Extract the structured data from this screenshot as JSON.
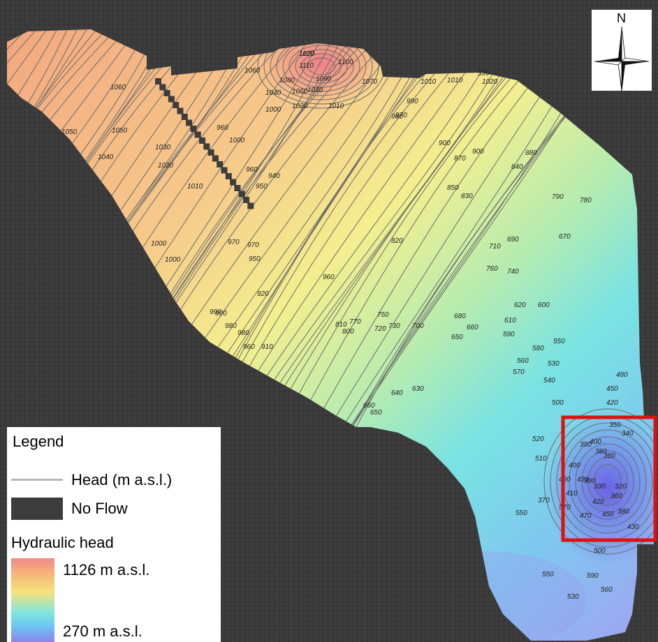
{
  "legend": {
    "title": "Legend",
    "head_label": "Head (m a.s.l.)",
    "noflow_label": "No Flow",
    "hydraulic_title": "Hydraulic head",
    "max_label": "1126 m a.s.l.",
    "min_label": "270 m a.s.l."
  },
  "north_arrow": {
    "label": "N"
  },
  "colors": {
    "no_flow": "#3a3a3a",
    "grid_line": "#2a2a2a",
    "contour": "#6b6b6b",
    "highlight_box": "#e01010",
    "ramp_high": "#f08a8a",
    "ramp_low": "#8a84ef"
  },
  "contour_labels": [
    "1120",
    "1110",
    "1100",
    "1090",
    "1070",
    "1060",
    "1080",
    "1050",
    "1040",
    "1030",
    "1020",
    "1010",
    "1000",
    "1060",
    "1050",
    "1040",
    "1030",
    "1020",
    "1010",
    "1050",
    "1000",
    "960",
    "1000",
    "1010",
    "1010",
    "1020",
    "990",
    "960",
    "960",
    "950",
    "940",
    "970",
    "950",
    "920",
    "960",
    "970",
    "990",
    "980",
    "960",
    "910",
    "980",
    "990",
    "1000",
    "970",
    "900",
    "900",
    "870",
    "880",
    "840",
    "850",
    "830",
    "790",
    "780",
    "670",
    "820",
    "710",
    "690",
    "760",
    "740",
    "750",
    "770",
    "730",
    "720",
    "810",
    "800",
    "700",
    "680",
    "660",
    "650",
    "620",
    "600",
    "610",
    "590",
    "580",
    "560",
    "550",
    "570",
    "540",
    "530",
    "500",
    "480",
    "450",
    "420",
    "640",
    "630",
    "660",
    "650",
    "520",
    "510",
    "400",
    "490",
    "470",
    "430",
    "420",
    "400",
    "390",
    "380",
    "360",
    "350",
    "340",
    "320",
    "330",
    "360",
    "380",
    "430",
    "450",
    "410",
    "390",
    "370",
    "550",
    "590",
    "560",
    "570",
    "500",
    "530",
    "550",
    "590",
    "1020"
  ]
}
